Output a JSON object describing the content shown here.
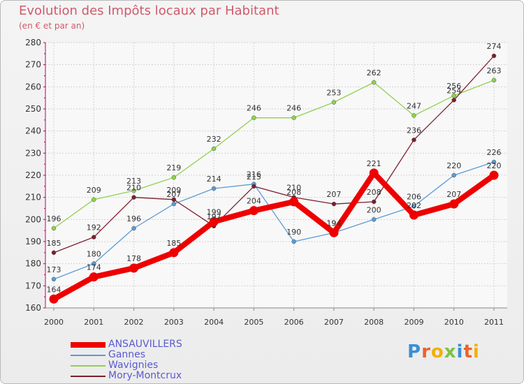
{
  "title": "Evolution des Impôts locaux par Habitant",
  "subtitle": "(en € et par an)",
  "logo": {
    "letters": [
      "P",
      "r",
      "o",
      "x",
      "i",
      "t",
      "i"
    ],
    "colors": [
      "#3a8fd6",
      "#e8642a",
      "#f2b000",
      "#7cc242",
      "#3a8fd6",
      "#e8642a",
      "#f2b000"
    ]
  },
  "chart_data": {
    "type": "line",
    "x": [
      "2000",
      "2001",
      "2002",
      "2003",
      "2004",
      "2005",
      "2006",
      "2007",
      "2008",
      "2009",
      "2010",
      "2011"
    ],
    "ylim": [
      160,
      280
    ],
    "yticks": [
      "160",
      "170",
      "180",
      "190",
      "200",
      "210",
      "220",
      "230",
      "240",
      "250",
      "260",
      "270",
      "280"
    ],
    "grid": true,
    "legend_position": "bottom-left",
    "series": [
      {
        "name": "ANSAUVILLERS",
        "color": "#ee0000",
        "emphasis": true,
        "values": [
          164,
          174,
          178,
          185,
          199,
          204,
          208,
          194,
          221,
          202,
          207,
          220
        ],
        "labels": [
          "164",
          "174",
          "178",
          "185",
          "199",
          "204",
          "208",
          "194",
          "221",
          "202",
          "207",
          "220"
        ]
      },
      {
        "name": "Gannes",
        "color": "#5b9bd5",
        "emphasis": false,
        "values": [
          173,
          180,
          196,
          207,
          214,
          216,
          190,
          194,
          200,
          206,
          220,
          226
        ],
        "labels": [
          "173",
          "180",
          "196",
          "207",
          "214",
          "216",
          "190",
          "194",
          "200",
          "206",
          "220",
          "226"
        ]
      },
      {
        "name": "Wavignies",
        "color": "#8fd14f",
        "emphasis": false,
        "values": [
          196,
          209,
          213,
          219,
          232,
          246,
          246,
          253,
          262,
          247,
          256,
          263
        ],
        "labels": [
          "196",
          "209",
          "213",
          "219",
          "232",
          "246",
          "246",
          "253",
          "262",
          "247",
          "256",
          "263"
        ]
      },
      {
        "name": "Mory-Montcrux",
        "color": "#7a1f2e",
        "emphasis": false,
        "values": [
          185,
          192,
          210,
          209,
          197,
          215,
          210,
          207,
          208,
          236,
          254,
          274
        ],
        "labels": [
          "185",
          "192",
          "210",
          "209",
          "197",
          "215",
          "210",
          "207",
          "208",
          "236",
          "254",
          "274"
        ]
      }
    ]
  }
}
